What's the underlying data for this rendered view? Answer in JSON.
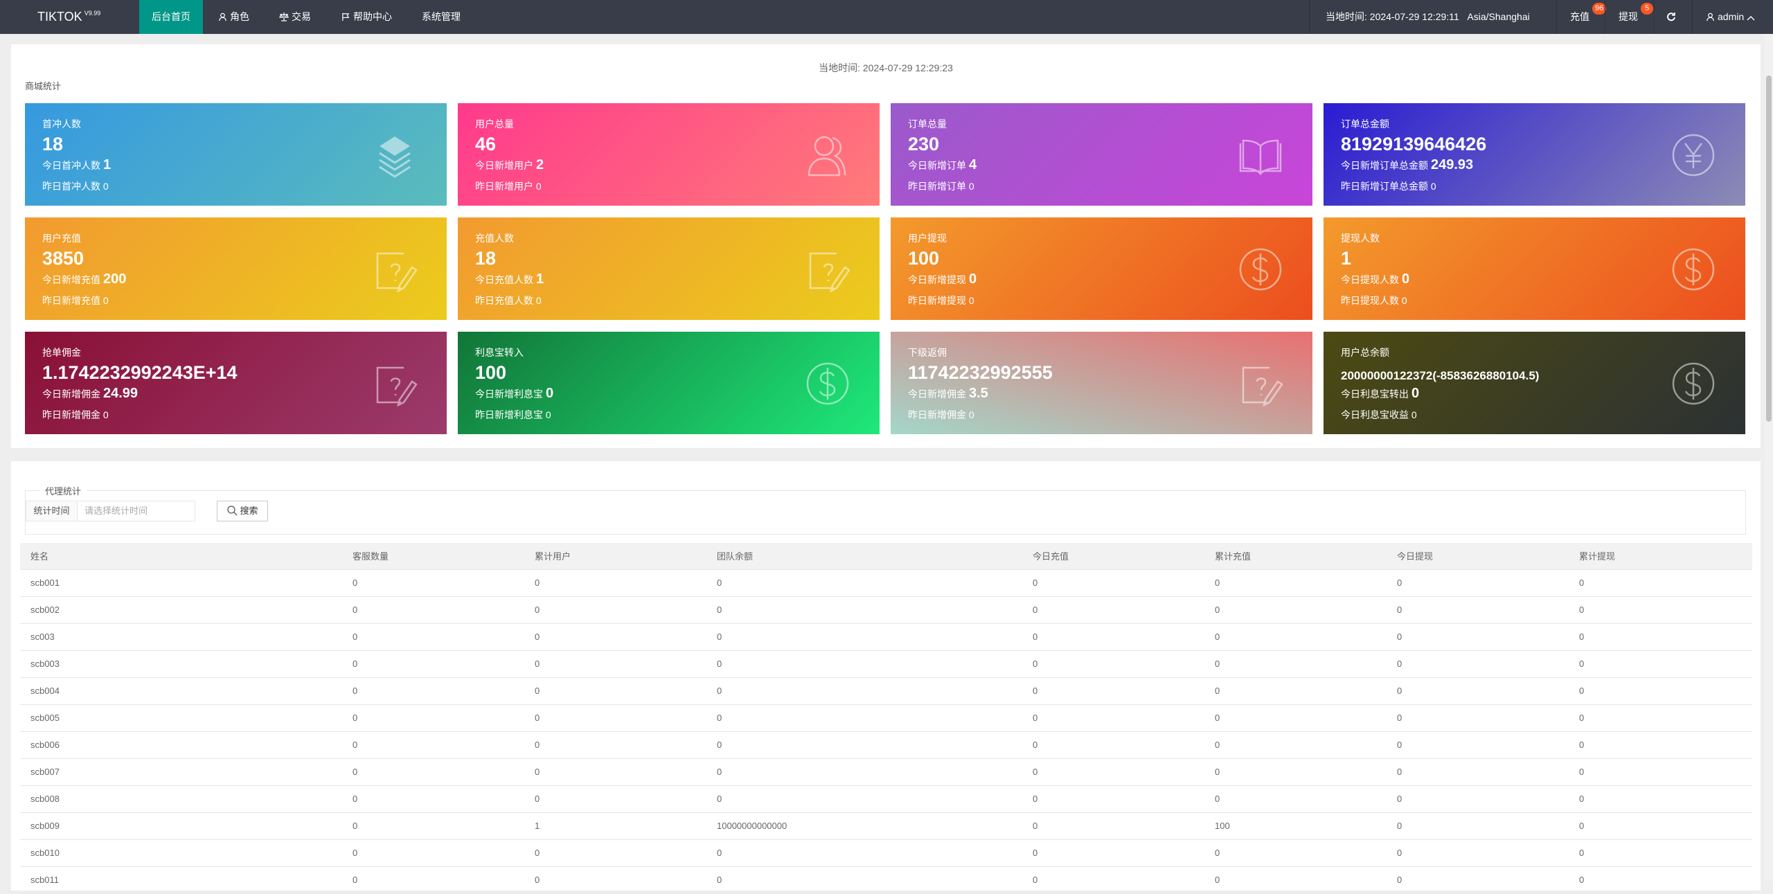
{
  "nav": {
    "logo": "TIKTOK",
    "version": "V9.99",
    "items": [
      {
        "label": "后台首页",
        "icon": "",
        "active": true
      },
      {
        "label": "角色",
        "icon": "user-icon"
      },
      {
        "label": "交易",
        "icon": "scale-icon"
      },
      {
        "label": "帮助中心",
        "icon": "flag-icon"
      },
      {
        "label": "系统管理",
        "icon": ""
      }
    ],
    "local_time": "当地时间: 2024-07-29 12:29:11",
    "timezone": "Asia/Shanghai",
    "recharge_label": "充值",
    "recharge_badge": "96",
    "withdraw_label": "提现",
    "withdraw_badge": "5",
    "user": "admin",
    "accent": "#009688"
  },
  "overview": {
    "local_time": "当地时间:   2024-07-29 12:29:23",
    "section_title": "商城统计",
    "cards": [
      {
        "title": "首冲人数",
        "value": "18",
        "today_label": "今日首冲人数",
        "today": "1",
        "yest": "昨日首冲人数 0",
        "icon": "layers-icon",
        "colors": [
          "#3599e0",
          "#5bbcbc"
        ]
      },
      {
        "title": "用户总量",
        "value": "46",
        "today_label": "今日新增用户",
        "today": "2",
        "yest": "昨日新增用户 0",
        "icon": "users-icon",
        "colors": [
          "#ff3a8c",
          "#ff7b79"
        ]
      },
      {
        "title": "订单总量",
        "value": "230",
        "today_label": "今日新增订单",
        "today": "4",
        "yest": "昨日新增订单 0",
        "icon": "book-icon",
        "colors": [
          "#9a5acb",
          "#c845d8"
        ]
      },
      {
        "title": "订单总金额",
        "value": "81929139646426",
        "today_label": "今日新增订单总金额",
        "today": "249.93",
        "yest": "昨日新增订单总金额 0",
        "icon": "yen-icon",
        "colors": [
          "#2a1cd2",
          "#8d8bb5"
        ]
      },
      {
        "title": "用户充值",
        "value": "3850",
        "today_label": "今日新增充值",
        "today": "200",
        "yest": "昨日新增充值 0",
        "icon": "question-edit-icon",
        "colors": [
          "#f29a30",
          "#ebcc1c"
        ]
      },
      {
        "title": "充值人数",
        "value": "18",
        "today_label": "今日充值人数",
        "today": "1",
        "yest": "昨日充值人数 0",
        "icon": "question-edit-icon",
        "colors": [
          "#f29a30",
          "#ebcc1c"
        ]
      },
      {
        "title": "用户提现",
        "value": "100",
        "today_label": "今日新增提现",
        "today": "0",
        "yest": "昨日新增提现 0",
        "icon": "dollar-icon",
        "colors": [
          "#f39a2c",
          "#ec4e1e"
        ]
      },
      {
        "title": "提现人数",
        "value": "1",
        "today_label": "今日提现人数",
        "today": "0",
        "yest": "昨日提现人数 0",
        "icon": "dollar-icon",
        "colors": [
          "#f39a2c",
          "#ec4e1e"
        ]
      },
      {
        "title": "抢单佣金",
        "value": "1.1742232992243E+14",
        "today_label": "今日新增佣金",
        "today": "24.99",
        "yest": "昨日新增佣金 0",
        "icon": "question-edit-icon",
        "colors": [
          "#8a1035",
          "#9b3b6c"
        ]
      },
      {
        "title": "利息宝转入",
        "value": "100",
        "today_label": "今日新增利息宝",
        "today": "0",
        "yest": "昨日新增利息宝 0",
        "icon": "dollar-icon",
        "colors": [
          "#127538",
          "#1ee97a"
        ]
      },
      {
        "title": "下级返佣",
        "value": "11742232992555",
        "today_label": "今日新增佣金",
        "today": "3.5",
        "yest": "昨日新增佣金 0",
        "icon": "question-edit-icon",
        "colors": [
          "#a4d6c9",
          "#e87070"
        ]
      },
      {
        "title": "用户总余额",
        "value": "20000000122372(-8583626880104.5)",
        "today_label": "今日利息宝转出",
        "today": "0",
        "yest": "今日利息宝收益 0",
        "icon": "dollar-icon",
        "colors": [
          "#4c4a12",
          "#2c3133"
        ]
      }
    ]
  },
  "agent": {
    "legend": "代理统计",
    "time_label": "统计时间",
    "time_placeholder": "请选择统计时间",
    "search_label": "搜索",
    "columns": [
      "姓名",
      "客服数量",
      "累计用户",
      "团队余额",
      "今日充值",
      "累计充值",
      "今日提现",
      "累计提现"
    ],
    "rows": [
      [
        "scb001",
        "0",
        "0",
        "0",
        "0",
        "0",
        "0",
        "0"
      ],
      [
        "scb002",
        "0",
        "0",
        "0",
        "0",
        "0",
        "0",
        "0"
      ],
      [
        "sc003",
        "0",
        "0",
        "0",
        "0",
        "0",
        "0",
        "0"
      ],
      [
        "scb003",
        "0",
        "0",
        "0",
        "0",
        "0",
        "0",
        "0"
      ],
      [
        "scb004",
        "0",
        "0",
        "0",
        "0",
        "0",
        "0",
        "0"
      ],
      [
        "scb005",
        "0",
        "0",
        "0",
        "0",
        "0",
        "0",
        "0"
      ],
      [
        "scb006",
        "0",
        "0",
        "0",
        "0",
        "0",
        "0",
        "0"
      ],
      [
        "scb007",
        "0",
        "0",
        "0",
        "0",
        "0",
        "0",
        "0"
      ],
      [
        "scb008",
        "0",
        "0",
        "0",
        "0",
        "0",
        "0",
        "0"
      ],
      [
        "scb009",
        "0",
        "1",
        "10000000000000",
        "0",
        "100",
        "0",
        "0"
      ],
      [
        "scb010",
        "0",
        "0",
        "0",
        "0",
        "0",
        "0",
        "0"
      ],
      [
        "scb011",
        "0",
        "0",
        "0",
        "0",
        "0",
        "0",
        "0"
      ]
    ]
  }
}
